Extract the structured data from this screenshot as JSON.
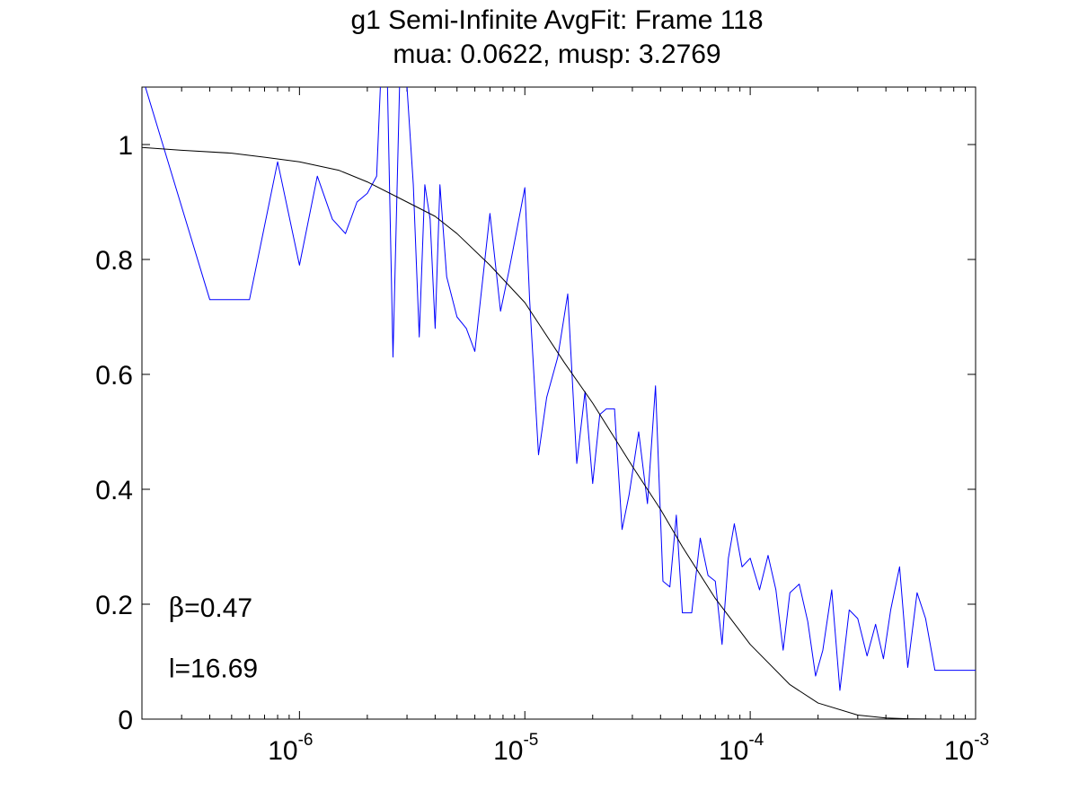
{
  "chart_data": {
    "type": "line",
    "title": "g1 Semi-Infinite AvgFit: Frame 118",
    "subtitle": "mua: 0.0622, musp: 3.2769",
    "x_scale": "log",
    "xlim": [
      2e-07,
      0.001
    ],
    "ylim": [
      0,
      1.1
    ],
    "grid": false,
    "x_ticks": [
      {
        "value": 1e-06,
        "base": "10",
        "exp": "-6"
      },
      {
        "value": 1e-05,
        "base": "10",
        "exp": "-5"
      },
      {
        "value": 0.0001,
        "base": "10",
        "exp": "-4"
      },
      {
        "value": 0.001,
        "base": "10",
        "exp": "-3"
      }
    ],
    "y_ticks": [
      {
        "value": 0,
        "label": "0"
      },
      {
        "value": 0.2,
        "label": "0.2"
      },
      {
        "value": 0.4,
        "label": "0.4"
      },
      {
        "value": 0.6,
        "label": "0.6"
      },
      {
        "value": 0.8,
        "label": "0.8"
      },
      {
        "value": 1,
        "label": "1"
      }
    ],
    "annotations": [
      {
        "symbol": "β",
        "text": "=0.47",
        "x": 5e-07,
        "y": 0.195
      },
      {
        "symbol": "",
        "text": "l=16.69",
        "x": 5e-07,
        "y": 0.09
      }
    ],
    "series": [
      {
        "color": "#0000ff",
        "x": [
          2e-07,
          4e-07,
          6e-07,
          8e-07,
          1e-06,
          1.2e-06,
          1.4e-06,
          1.6e-06,
          1.8e-06,
          2e-06,
          2.2e-06,
          2.4e-06,
          2.6e-06,
          2.8e-06,
          3e-06,
          3.2e-06,
          3.4e-06,
          3.6e-06,
          3.8e-06,
          4e-06,
          4.2e-06,
          4.5e-06,
          5e-06,
          5.5e-06,
          6e-06,
          7e-06,
          7.8e-06,
          8.5e-06,
          9.2e-06,
          1e-05,
          1.05e-05,
          1.15e-05,
          1.25e-05,
          1.4e-05,
          1.55e-05,
          1.7e-05,
          1.85e-05,
          2e-05,
          2.15e-05,
          2.3e-05,
          2.5e-05,
          2.7e-05,
          2.9e-05,
          3.2e-05,
          3.5e-05,
          3.8e-05,
          4.1e-05,
          4.4e-05,
          4.7e-05,
          5e-05,
          5.5e-05,
          6e-05,
          6.5e-05,
          7e-05,
          7.5e-05,
          8e-05,
          8.5e-05,
          9.2e-05,
          0.0001,
          0.00011,
          0.00012,
          0.00013,
          0.00014,
          0.00015,
          0.000165,
          0.00018,
          0.000195,
          0.00021,
          0.00023,
          0.00025,
          0.000275,
          0.0003,
          0.00033,
          0.00036,
          0.00039,
          0.00042,
          0.00046,
          0.0005,
          0.00055,
          0.0006,
          0.00066,
          0.00072,
          0.00079,
          0.00086,
          0.001
        ],
        "y": [
          1.12,
          0.73,
          0.73,
          0.97,
          0.79,
          0.945,
          0.87,
          0.845,
          0.9,
          0.915,
          0.945,
          1.3,
          0.63,
          1.15,
          1.1,
          0.93,
          0.665,
          0.93,
          0.87,
          0.68,
          0.93,
          0.77,
          0.7,
          0.68,
          0.64,
          0.88,
          0.71,
          0.78,
          0.85,
          0.925,
          0.73,
          0.46,
          0.56,
          0.63,
          0.74,
          0.445,
          0.57,
          0.41,
          0.53,
          0.54,
          0.54,
          0.33,
          0.39,
          0.5,
          0.375,
          0.58,
          0.24,
          0.23,
          0.355,
          0.185,
          0.185,
          0.315,
          0.25,
          0.24,
          0.13,
          0.28,
          0.34,
          0.265,
          0.28,
          0.225,
          0.285,
          0.225,
          0.12,
          0.22,
          0.235,
          0.17,
          0.075,
          0.12,
          0.225,
          0.05,
          0.19,
          0.175,
          0.11,
          0.165,
          0.105,
          0.19,
          0.265,
          0.09,
          0.22,
          0.175,
          0.085,
          0.085,
          0.085,
          0.085,
          0.085
        ]
      },
      {
        "color": "#000000",
        "x": [
          2e-07,
          3e-07,
          5e-07,
          7e-07,
          1e-06,
          1.5e-06,
          2e-06,
          3e-06,
          4e-06,
          5e-06,
          7e-06,
          1e-05,
          1.5e-05,
          2e-05,
          3e-05,
          4e-05,
          5e-05,
          7e-05,
          0.0001,
          0.00015,
          0.0002,
          0.0003,
          0.0004,
          0.0005,
          0.0007,
          0.001
        ],
        "y": [
          0.995,
          0.99,
          0.985,
          0.978,
          0.97,
          0.955,
          0.935,
          0.9,
          0.875,
          0.845,
          0.79,
          0.725,
          0.62,
          0.55,
          0.44,
          0.365,
          0.3,
          0.21,
          0.13,
          0.06,
          0.028,
          0.007,
          0.002,
          0.0005,
          0.0001,
          0.0
        ]
      }
    ]
  }
}
